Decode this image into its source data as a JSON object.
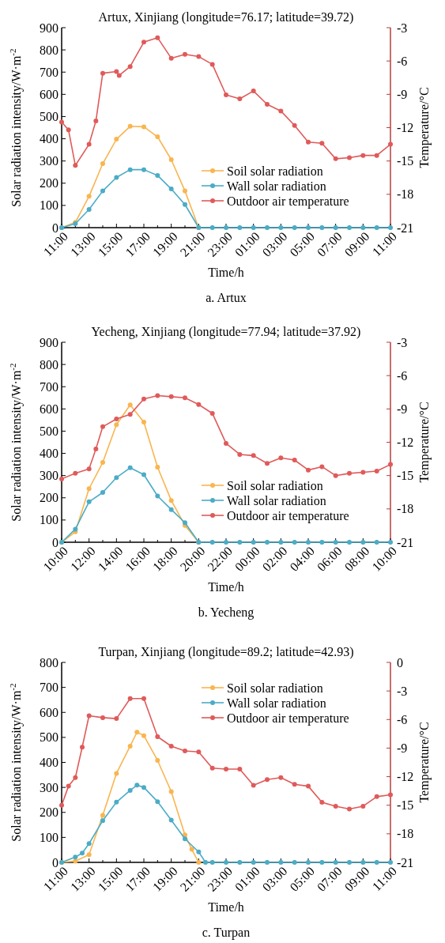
{
  "chart_data": [
    {
      "type": "line",
      "title": "Artux, Xinjiang (longitude=76.17; latitude=39.72)",
      "xlabel": "Time/h",
      "ylabel": "Solar radiation intensity/W·m$^{-2}$",
      "y2label": "Temperature/°C",
      "annotations": [
        "a. Artux"
      ],
      "legend": "bottom right",
      "marker": "circle",
      "line_style": "solid",
      "xlim": [
        "2000-01-01T11:00",
        "2000-01-02T11:00"
      ],
      "xticks": [
        {
          "value": "2000-01-01T11:00",
          "label": "11:00"
        },
        {
          "value": "2000-01-01T12:00",
          "label": null
        },
        {
          "value": "2000-01-01T13:00",
          "label": "13:00"
        },
        {
          "value": "2000-01-01T14:00",
          "label": null
        },
        {
          "value": "2000-01-01T15:00",
          "label": "15:00"
        },
        {
          "value": "2000-01-01T16:00",
          "label": null
        },
        {
          "value": "2000-01-01T17:00",
          "label": "17:00"
        },
        {
          "value": "2000-01-01T18:00",
          "label": null
        },
        {
          "value": "2000-01-01T19:00",
          "label": "19:00"
        },
        {
          "value": "2000-01-01T20:00",
          "label": null
        },
        {
          "value": "2000-01-01T21:00",
          "label": "21:00"
        },
        {
          "value": "2000-01-01T22:00",
          "label": null
        },
        {
          "value": "2000-01-01T23:00",
          "label": "23:00"
        },
        {
          "value": "2000-01-02T00:00",
          "label": null
        },
        {
          "value": "2000-01-02T01:00",
          "label": "01:00"
        },
        {
          "value": "2000-01-02T02:00",
          "label": null
        },
        {
          "value": "2000-01-02T03:00",
          "label": "03:00"
        },
        {
          "value": "2000-01-02T04:00",
          "label": null
        },
        {
          "value": "2000-01-02T05:00",
          "label": "05:00"
        },
        {
          "value": "2000-01-02T06:00",
          "label": null
        },
        {
          "value": "2000-01-02T07:00",
          "label": "07:00"
        },
        {
          "value": "2000-01-02T08:00",
          "label": null
        },
        {
          "value": "2000-01-02T09:00",
          "label": "09:00"
        },
        {
          "value": "2000-01-02T10:00",
          "label": null
        },
        {
          "value": "2000-01-02T11:00",
          "label": "11:00"
        }
      ],
      "ylim": [
        0,
        900
      ],
      "yticks": [
        0,
        100,
        200,
        300,
        400,
        500,
        600,
        700,
        800,
        900
      ],
      "y2lim": [
        -21,
        -3
      ],
      "y2ticks": [
        -21,
        -18,
        -15,
        -12,
        -9,
        -6,
        -3
      ],
      "series": [
        {
          "name": "Soil solar radiation",
          "color": "#f9b54f",
          "x": [
            "2000-01-01T11:00",
            "2000-01-01T12:00",
            "2000-01-01T13:00",
            "2000-01-01T14:00",
            "2000-01-01T15:00",
            "2000-01-01T16:00",
            "2000-01-01T17:00",
            "2000-01-01T18:00",
            "2000-01-01T19:00",
            "2000-01-01T20:00",
            "2000-01-01T21:00"
          ],
          "values": [
            0,
            24,
            141,
            288,
            398,
            456,
            454,
            409,
            306,
            165,
            0
          ]
        },
        {
          "name": "Wall solar radiation",
          "color": "#4bacc6",
          "x": [
            "2000-01-01T11:00",
            "2000-01-01T12:00",
            "2000-01-01T13:00",
            "2000-01-01T14:00",
            "2000-01-01T15:00",
            "2000-01-01T16:00",
            "2000-01-01T17:00",
            "2000-01-01T18:00",
            "2000-01-01T19:00",
            "2000-01-01T20:00",
            "2000-01-01T21:00",
            "2000-01-01T22:00",
            "2000-01-01T23:00",
            "2000-01-02T00:00",
            "2000-01-02T01:00",
            "2000-01-02T02:00",
            "2000-01-02T03:00",
            "2000-01-02T04:00",
            "2000-01-02T05:00",
            "2000-01-02T06:00",
            "2000-01-02T07:00",
            "2000-01-02T08:00",
            "2000-01-02T09:00",
            "2000-01-02T10:00",
            "2000-01-02T11:00"
          ],
          "values": [
            0,
            18,
            82,
            165,
            226,
            261,
            261,
            235,
            174,
            104,
            0,
            0,
            0,
            0,
            0,
            0,
            0,
            0,
            0,
            0,
            0,
            0,
            0,
            0,
            0
          ]
        },
        {
          "name": "Outdoor air temperature",
          "color": "#e05a5a",
          "axis": "y2",
          "x": [
            "2000-01-01T11:00",
            "2000-01-01T11:30",
            "2000-01-01T12:00",
            "2000-01-01T13:00",
            "2000-01-01T13:30",
            "2000-01-01T14:00",
            "2000-01-01T15:00",
            "2000-01-01T15:12",
            "2000-01-01T16:00",
            "2000-01-01T17:00",
            "2000-01-01T18:00",
            "2000-01-01T19:00",
            "2000-01-01T20:00",
            "2000-01-01T21:00",
            "2000-01-01T22:00",
            "2000-01-01T23:00",
            "2000-01-02T00:00",
            "2000-01-02T01:00",
            "2000-01-02T02:00",
            "2000-01-02T03:00",
            "2000-01-02T04:00",
            "2000-01-02T05:00",
            "2000-01-02T06:00",
            "2000-01-02T07:00",
            "2000-01-02T08:00",
            "2000-01-02T09:00",
            "2000-01-02T10:00",
            "2000-01-02T11:00"
          ],
          "values": [
            -11.5,
            -12.2,
            -15.4,
            -13.5,
            -11.4,
            -7.1,
            -6.95,
            -7.3,
            -6.5,
            -4.3,
            -3.9,
            -5.75,
            -5.4,
            -5.6,
            -6.3,
            -9.05,
            -9.4,
            -8.7,
            -9.9,
            -10.5,
            -11.8,
            -13.3,
            -13.4,
            -14.8,
            -14.7,
            -14.5,
            -14.5,
            -13.5
          ]
        }
      ]
    },
    {
      "type": "line",
      "title": "Yecheng, Xinjiang (longitude=77.94; latitude=37.92)",
      "xlabel": "Time/h",
      "ylabel": "Solar radiation intensity/W·m$^{-2}$",
      "y2label": "Temperature/°C",
      "annotations": [
        "b. Yecheng"
      ],
      "legend": "bottom right",
      "marker": "circle",
      "line_style": "solid",
      "xlim": [
        "2000-01-01T10:00",
        "2000-01-02T10:00"
      ],
      "xticks": [
        {
          "value": "2000-01-01T10:00",
          "label": "10:00"
        },
        {
          "value": "2000-01-01T11:00",
          "label": null
        },
        {
          "value": "2000-01-01T12:00",
          "label": "12:00"
        },
        {
          "value": "2000-01-01T13:00",
          "label": null
        },
        {
          "value": "2000-01-01T14:00",
          "label": "14:00"
        },
        {
          "value": "2000-01-01T15:00",
          "label": null
        },
        {
          "value": "2000-01-01T16:00",
          "label": "16:00"
        },
        {
          "value": "2000-01-01T17:00",
          "label": null
        },
        {
          "value": "2000-01-01T18:00",
          "label": "18:00"
        },
        {
          "value": "2000-01-01T19:00",
          "label": null
        },
        {
          "value": "2000-01-01T20:00",
          "label": "20:00"
        },
        {
          "value": "2000-01-01T21:00",
          "label": null
        },
        {
          "value": "2000-01-01T22:00",
          "label": "22:00"
        },
        {
          "value": "2000-01-01T23:00",
          "label": null
        },
        {
          "value": "2000-01-02T00:00",
          "label": "00:00"
        },
        {
          "value": "2000-01-02T01:00",
          "label": null
        },
        {
          "value": "2000-01-02T02:00",
          "label": "02:00"
        },
        {
          "value": "2000-01-02T03:00",
          "label": null
        },
        {
          "value": "2000-01-02T04:00",
          "label": "04:00"
        },
        {
          "value": "2000-01-02T05:00",
          "label": null
        },
        {
          "value": "2000-01-02T06:00",
          "label": "06:00"
        },
        {
          "value": "2000-01-02T07:00",
          "label": null
        },
        {
          "value": "2000-01-02T08:00",
          "label": "08:00"
        },
        {
          "value": "2000-01-02T09:00",
          "label": null
        },
        {
          "value": "2000-01-02T10:00",
          "label": "10:00"
        }
      ],
      "ylim": [
        0,
        900
      ],
      "yticks": [
        0,
        100,
        200,
        300,
        400,
        500,
        600,
        700,
        800,
        900
      ],
      "y2lim": [
        -21,
        -3
      ],
      "y2ticks": [
        -21,
        -18,
        -15,
        -12,
        -9,
        -6,
        -3
      ],
      "series": [
        {
          "name": "Soil solar radiation",
          "color": "#f9b54f",
          "x": [
            "2000-01-01T10:00",
            "2000-01-01T11:00",
            "2000-01-01T12:00",
            "2000-01-01T13:00",
            "2000-01-01T14:00",
            "2000-01-01T15:00",
            "2000-01-01T16:00",
            "2000-01-01T17:00",
            "2000-01-01T18:00",
            "2000-01-01T19:00",
            "2000-01-01T20:00"
          ],
          "values": [
            0,
            47,
            241,
            359,
            529,
            618,
            541,
            338,
            188,
            76,
            0
          ]
        },
        {
          "name": "Wall solar radiation",
          "color": "#4bacc6",
          "x": [
            "2000-01-01T10:00",
            "2000-01-01T11:00",
            "2000-01-01T12:00",
            "2000-01-01T13:00",
            "2000-01-01T14:00",
            "2000-01-01T15:00",
            "2000-01-01T16:00",
            "2000-01-01T17:00",
            "2000-01-01T18:00",
            "2000-01-01T19:00",
            "2000-01-01T20:00",
            "2000-01-01T21:00",
            "2000-01-01T22:00",
            "2000-01-01T23:00",
            "2000-01-02T00:00",
            "2000-01-02T01:00",
            "2000-01-02T02:00",
            "2000-01-02T03:00",
            "2000-01-02T04:00",
            "2000-01-02T05:00",
            "2000-01-02T06:00",
            "2000-01-02T07:00",
            "2000-01-02T08:00",
            "2000-01-02T09:00",
            "2000-01-02T10:00"
          ],
          "values": [
            0,
            59,
            182,
            224,
            291,
            335,
            304,
            208,
            147,
            88,
            0,
            0,
            0,
            0,
            0,
            0,
            0,
            0,
            0,
            0,
            0,
            0,
            0,
            0,
            0
          ]
        },
        {
          "name": "Outdoor air temperature",
          "color": "#e05a5a",
          "axis": "y2",
          "x": [
            "2000-01-01T10:00",
            "2000-01-01T11:00",
            "2000-01-01T12:00",
            "2000-01-01T12:30",
            "2000-01-01T13:00",
            "2000-01-01T14:00",
            "2000-01-01T15:00",
            "2000-01-01T16:00",
            "2000-01-01T17:00",
            "2000-01-01T18:00",
            "2000-01-01T19:00",
            "2000-01-01T20:00",
            "2000-01-01T21:00",
            "2000-01-01T22:00",
            "2000-01-01T23:00",
            "2000-01-02T00:00",
            "2000-01-02T01:00",
            "2000-01-02T02:00",
            "2000-01-02T03:00",
            "2000-01-02T04:00",
            "2000-01-02T05:00",
            "2000-01-02T06:00",
            "2000-01-02T07:00",
            "2000-01-02T08:00",
            "2000-01-02T09:00",
            "2000-01-02T10:00"
          ],
          "values": [
            -15.3,
            -14.8,
            -14.4,
            -12.6,
            -10.6,
            -9.9,
            -9.5,
            -8.1,
            -7.8,
            -7.9,
            -8.0,
            -8.6,
            -9.4,
            -12.1,
            -13.1,
            -13.2,
            -13.9,
            -13.4,
            -13.6,
            -14.5,
            -14.2,
            -15.0,
            -14.8,
            -14.7,
            -14.6,
            -14.0
          ]
        }
      ]
    },
    {
      "type": "line",
      "title": "Turpan, Xinjiang (longitude=89.2; latitude=42.93)",
      "xlabel": "Time/h",
      "ylabel": "Solar radiation intensity/W·m$^{-2}$",
      "y2label": "Temperature/°C",
      "annotations": [
        "c. Turpan"
      ],
      "legend": "top right",
      "marker": "circle",
      "line_style": "solid",
      "xlim": [
        "2000-01-01T11:00",
        "2000-01-02T11:00"
      ],
      "xticks": [
        {
          "value": "2000-01-01T11:00",
          "label": "11:00"
        },
        {
          "value": "2000-01-01T12:00",
          "label": null
        },
        {
          "value": "2000-01-01T13:00",
          "label": "13:00"
        },
        {
          "value": "2000-01-01T14:00",
          "label": null
        },
        {
          "value": "2000-01-01T15:00",
          "label": "15:00"
        },
        {
          "value": "2000-01-01T16:00",
          "label": null
        },
        {
          "value": "2000-01-01T17:00",
          "label": "17:00"
        },
        {
          "value": "2000-01-01T18:00",
          "label": null
        },
        {
          "value": "2000-01-01T19:00",
          "label": "19:00"
        },
        {
          "value": "2000-01-01T20:00",
          "label": null
        },
        {
          "value": "2000-01-01T21:00",
          "label": "21:00"
        },
        {
          "value": "2000-01-01T22:00",
          "label": null
        },
        {
          "value": "2000-01-01T23:00",
          "label": "23:00"
        },
        {
          "value": "2000-01-02T00:00",
          "label": null
        },
        {
          "value": "2000-01-02T01:00",
          "label": "01:00"
        },
        {
          "value": "2000-01-02T02:00",
          "label": null
        },
        {
          "value": "2000-01-02T03:00",
          "label": "03:00"
        },
        {
          "value": "2000-01-02T04:00",
          "label": null
        },
        {
          "value": "2000-01-02T05:00",
          "label": "05:00"
        },
        {
          "value": "2000-01-02T06:00",
          "label": null
        },
        {
          "value": "2000-01-02T07:00",
          "label": "07:00"
        },
        {
          "value": "2000-01-02T08:00",
          "label": null
        },
        {
          "value": "2000-01-02T09:00",
          "label": "09:00"
        },
        {
          "value": "2000-01-02T10:00",
          "label": null
        },
        {
          "value": "2000-01-02T11:00",
          "label": "11:00"
        }
      ],
      "ylim": [
        0,
        800
      ],
      "yticks": [
        0,
        100,
        200,
        300,
        400,
        500,
        600,
        700,
        800
      ],
      "y2lim": [
        -21,
        0
      ],
      "y2ticks": [
        -21,
        -18,
        -15,
        -12,
        -9,
        -6,
        -3,
        0
      ],
      "series": [
        {
          "name": "Soil solar radiation",
          "color": "#f9b54f",
          "x": [
            "2000-01-01T11:00",
            "2000-01-01T12:00",
            "2000-01-01T13:00",
            "2000-01-01T14:00",
            "2000-01-01T15:00",
            "2000-01-01T16:00",
            "2000-01-01T16:30",
            "2000-01-01T17:00",
            "2000-01-01T18:00",
            "2000-01-01T19:00",
            "2000-01-01T20:00",
            "2000-01-01T20:30",
            "2000-01-01T21:00"
          ],
          "values": [
            0,
            5,
            31,
            188,
            356,
            465,
            521,
            507,
            408,
            283,
            110,
            52,
            0
          ]
        },
        {
          "name": "Wall solar radiation",
          "color": "#4bacc6",
          "x": [
            "2000-01-01T11:00",
            "2000-01-01T12:00",
            "2000-01-01T12:30",
            "2000-01-01T13:00",
            "2000-01-01T14:00",
            "2000-01-01T15:00",
            "2000-01-01T16:00",
            "2000-01-01T16:30",
            "2000-01-01T17:00",
            "2000-01-01T18:00",
            "2000-01-01T19:00",
            "2000-01-01T20:00",
            "2000-01-01T21:00",
            "2000-01-01T21:30",
            "2000-01-01T22:00",
            "2000-01-01T23:00",
            "2000-01-02T00:00",
            "2000-01-02T01:00",
            "2000-01-02T02:00",
            "2000-01-02T03:00",
            "2000-01-02T04:00",
            "2000-01-02T05:00",
            "2000-01-02T06:00",
            "2000-01-02T07:00",
            "2000-01-02T08:00",
            "2000-01-02T09:00",
            "2000-01-02T10:00",
            "2000-01-02T11:00"
          ],
          "values": [
            0,
            21,
            37,
            75,
            167,
            241,
            288,
            309,
            300,
            243,
            169,
            94,
            42,
            0,
            0,
            0,
            0,
            0,
            0,
            0,
            0,
            0,
            0,
            0,
            0,
            0,
            0,
            0
          ]
        },
        {
          "name": "Outdoor air temperature",
          "color": "#e05a5a",
          "axis": "y2",
          "x": [
            "2000-01-01T11:00",
            "2000-01-01T11:30",
            "2000-01-01T12:00",
            "2000-01-01T12:30",
            "2000-01-01T13:00",
            "2000-01-01T14:00",
            "2000-01-01T15:00",
            "2000-01-01T16:00",
            "2000-01-01T17:00",
            "2000-01-01T18:00",
            "2000-01-01T19:00",
            "2000-01-01T20:00",
            "2000-01-01T21:00",
            "2000-01-01T22:00",
            "2000-01-01T23:00",
            "2000-01-02T00:00",
            "2000-01-02T01:00",
            "2000-01-02T02:00",
            "2000-01-02T03:00",
            "2000-01-02T04:00",
            "2000-01-02T05:00",
            "2000-01-02T06:00",
            "2000-01-02T07:00",
            "2000-01-02T08:00",
            "2000-01-02T09:00",
            "2000-01-02T10:00",
            "2000-01-02T11:00"
          ],
          "values": [
            -15.0,
            -13.0,
            -12.1,
            -8.9,
            -5.6,
            -5.8,
            -5.9,
            -3.8,
            -3.8,
            -7.8,
            -8.8,
            -9.3,
            -9.4,
            -11.1,
            -11.2,
            -11.2,
            -12.9,
            -12.3,
            -12.1,
            -12.8,
            -13.0,
            -14.7,
            -15.1,
            -15.4,
            -15.1,
            -14.1,
            -13.9
          ]
        }
      ]
    }
  ]
}
